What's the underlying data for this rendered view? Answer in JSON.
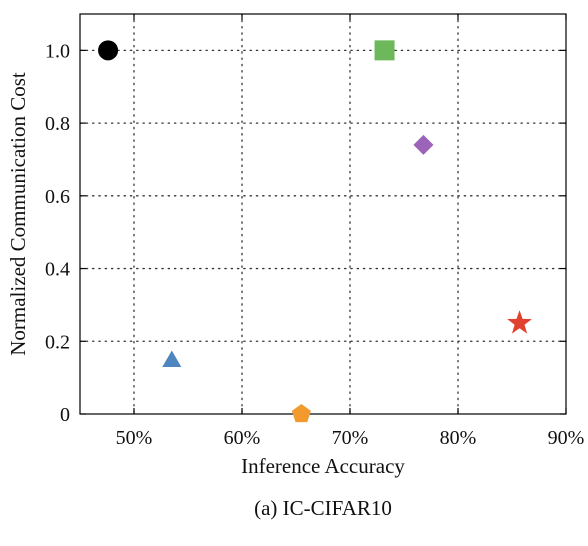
{
  "chart_data": {
    "type": "scatter",
    "title": "",
    "caption": "(a) IC-CIFAR10",
    "xlabel": "Inference Accuracy",
    "ylabel": "Normalized Communication Cost",
    "xlim": [
      45,
      90
    ],
    "ylim": [
      0,
      1.1
    ],
    "x_unit": "%",
    "xticks": [
      50,
      60,
      70,
      80,
      90
    ],
    "xtick_labels": [
      "50%",
      "60%",
      "70%",
      "80%",
      "90%"
    ],
    "yticks": [
      0,
      0.2,
      0.4,
      0.6,
      0.8,
      1.0
    ],
    "ytick_labels": [
      "0",
      "0.2",
      "0.4",
      "0.6",
      "0.8",
      "1.0"
    ],
    "grid": "dotted",
    "legend": "none",
    "points": [
      {
        "x": 47.6,
        "y": 1.0,
        "marker": "circle",
        "color": "#000000"
      },
      {
        "x": 53.5,
        "y": 0.15,
        "marker": "triangle",
        "color": "#4f86c0"
      },
      {
        "x": 65.5,
        "y": 0.0,
        "marker": "pentagon",
        "color": "#f29a2e"
      },
      {
        "x": 73.2,
        "y": 1.0,
        "marker": "square",
        "color": "#6cb85a"
      },
      {
        "x": 76.8,
        "y": 0.74,
        "marker": "diamond",
        "color": "#9b64b8"
      },
      {
        "x": 85.7,
        "y": 0.25,
        "marker": "star",
        "color": "#e1422f"
      }
    ]
  }
}
